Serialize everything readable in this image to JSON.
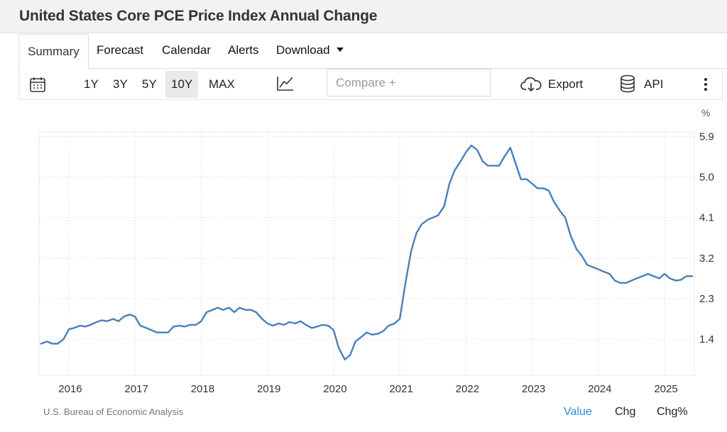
{
  "header": {
    "title": "United States Core PCE Price Index Annual Change"
  },
  "tabs": [
    {
      "label": "Summary",
      "active": true
    },
    {
      "label": "Forecast",
      "active": false
    },
    {
      "label": "Calendar",
      "active": false
    },
    {
      "label": "Alerts",
      "active": false
    },
    {
      "label": "Download",
      "active": false
    }
  ],
  "toolbar": {
    "ranges": [
      "1Y",
      "3Y",
      "5Y",
      "10Y",
      "MAX"
    ],
    "active_range": "10Y",
    "compare_placeholder": "Compare +",
    "export_label": "Export",
    "api_label": "API",
    "icons": [
      "calendar-icon",
      "line-chart-icon",
      "cloud-download-icon",
      "database-icon",
      "more-vertical-icon"
    ]
  },
  "footer": {
    "source": "U.S. Bureau of Economic Analysis",
    "modes": [
      "Value",
      "Chg",
      "Chg%"
    ],
    "active_mode": "Value"
  },
  "colors": {
    "line": "#4a7fb8",
    "accent": "#2a8fd6",
    "grid": "#e6e6e6"
  },
  "chart_data": {
    "type": "line",
    "title": "",
    "xlabel": "",
    "ylabel": "",
    "unit": "%",
    "x_tick_labels": [
      "2016",
      "2017",
      "2018",
      "2019",
      "2020",
      "2021",
      "2022",
      "2023",
      "2024",
      "2025"
    ],
    "y_tick_labels": [
      "5.9",
      "5.0",
      "4.1",
      "3.2",
      "2.3",
      "1.4"
    ],
    "ylim": [
      0.6,
      6.0
    ],
    "xlim": [
      2015.55,
      2025.45
    ],
    "grid": true,
    "series": [
      {
        "name": "",
        "x": [
          2015.58,
          2015.67,
          2015.75,
          2015.83,
          2015.92,
          2016.0,
          2016.08,
          2016.17,
          2016.25,
          2016.33,
          2016.42,
          2016.5,
          2016.58,
          2016.67,
          2016.75,
          2016.83,
          2016.92,
          2017.0,
          2017.08,
          2017.17,
          2017.25,
          2017.33,
          2017.42,
          2017.5,
          2017.58,
          2017.67,
          2017.75,
          2017.83,
          2017.92,
          2018.0,
          2018.08,
          2018.17,
          2018.25,
          2018.33,
          2018.42,
          2018.5,
          2018.58,
          2018.67,
          2018.75,
          2018.83,
          2018.92,
          2019.0,
          2019.08,
          2019.17,
          2019.25,
          2019.33,
          2019.42,
          2019.5,
          2019.58,
          2019.67,
          2019.75,
          2019.83,
          2019.92,
          2020.0,
          2020.08,
          2020.17,
          2020.25,
          2020.33,
          2020.42,
          2020.5,
          2020.58,
          2020.67,
          2020.75,
          2020.83,
          2020.92,
          2021.0,
          2021.08,
          2021.17,
          2021.25,
          2021.33,
          2021.42,
          2021.5,
          2021.58,
          2021.67,
          2021.75,
          2021.83,
          2021.92,
          2022.0,
          2022.08,
          2022.17,
          2022.25,
          2022.33,
          2022.42,
          2022.5,
          2022.58,
          2022.67,
          2022.75,
          2022.83,
          2022.92,
          2023.0,
          2023.08,
          2023.17,
          2023.25,
          2023.33,
          2023.42,
          2023.5,
          2023.58,
          2023.67,
          2023.75,
          2023.83,
          2023.92,
          2024.0,
          2024.08,
          2024.17,
          2024.25,
          2024.33,
          2024.42,
          2024.5,
          2024.58,
          2024.67,
          2024.75,
          2024.83,
          2024.92,
          2025.0,
          2025.08,
          2025.17,
          2025.25,
          2025.33,
          2025.42
        ],
        "y": [
          1.3,
          1.35,
          1.3,
          1.3,
          1.4,
          1.62,
          1.65,
          1.7,
          1.68,
          1.72,
          1.78,
          1.82,
          1.8,
          1.85,
          1.8,
          1.9,
          1.95,
          1.9,
          1.7,
          1.65,
          1.6,
          1.55,
          1.55,
          1.55,
          1.68,
          1.7,
          1.68,
          1.72,
          1.72,
          1.8,
          2.0,
          2.05,
          2.1,
          2.05,
          2.1,
          2.0,
          2.1,
          2.05,
          2.05,
          2.0,
          1.85,
          1.75,
          1.7,
          1.75,
          1.72,
          1.78,
          1.75,
          1.8,
          1.72,
          1.65,
          1.68,
          1.72,
          1.7,
          1.6,
          1.2,
          0.95,
          1.05,
          1.35,
          1.45,
          1.55,
          1.5,
          1.52,
          1.58,
          1.7,
          1.75,
          1.85,
          2.6,
          3.35,
          3.75,
          3.95,
          4.05,
          4.1,
          4.15,
          4.35,
          4.85,
          5.15,
          5.35,
          5.55,
          5.7,
          5.6,
          5.35,
          5.25,
          5.25,
          5.25,
          5.45,
          5.65,
          5.3,
          4.95,
          4.95,
          4.85,
          4.75,
          4.75,
          4.7,
          4.45,
          4.25,
          4.1,
          3.7,
          3.4,
          3.25,
          3.05,
          3.0,
          2.95,
          2.9,
          2.85,
          2.7,
          2.65,
          2.65,
          2.7,
          2.75,
          2.8,
          2.85,
          2.8,
          2.75,
          2.85,
          2.75,
          2.7,
          2.72,
          2.8,
          2.8
        ]
      }
    ]
  }
}
